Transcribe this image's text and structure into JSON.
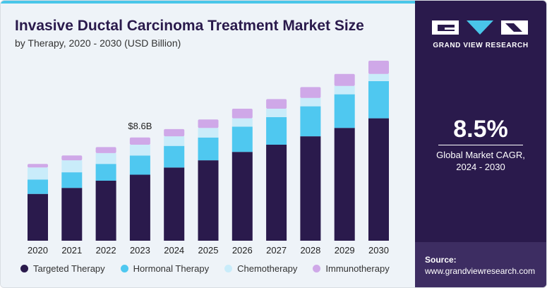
{
  "header": {
    "title": "Invasive Ductal Carcinoma Treatment Market Size",
    "subtitle": "by Therapy, 2020 - 2030 (USD Billion)"
  },
  "colors": {
    "targeted": "#2a1a4c",
    "hormonal": "#4fc8f0",
    "chemo": "#c9ecfa",
    "immuno": "#cfa8e8",
    "panel": "#2a1a4c",
    "accent": "#49c6e9"
  },
  "chart_data": {
    "type": "bar",
    "stacked": true,
    "categories": [
      "2020",
      "2021",
      "2022",
      "2023",
      "2024",
      "2025",
      "2026",
      "2027",
      "2028",
      "2029",
      "2030"
    ],
    "series": [
      {
        "name": "Targeted Therapy",
        "values": [
          3.9,
          4.4,
          5.0,
          5.5,
          6.1,
          6.7,
          7.4,
          8.0,
          8.7,
          9.4,
          10.2
        ]
      },
      {
        "name": "Hormonal Therapy",
        "values": [
          1.2,
          1.3,
          1.4,
          1.6,
          1.8,
          1.9,
          2.1,
          2.3,
          2.5,
          2.8,
          3.1
        ]
      },
      {
        "name": "Chemotherapy",
        "values": [
          1.0,
          1.0,
          0.9,
          0.9,
          0.8,
          0.8,
          0.7,
          0.7,
          0.7,
          0.7,
          0.6
        ]
      },
      {
        "name": "Immunotherapy",
        "values": [
          0.3,
          0.4,
          0.5,
          0.6,
          0.6,
          0.7,
          0.8,
          0.8,
          0.9,
          1.0,
          1.1
        ]
      }
    ],
    "annotations": [
      {
        "category": "2023",
        "text": "$8.6B"
      }
    ],
    "ylim": [
      0,
      16
    ],
    "grid": false,
    "legend": "bottom"
  },
  "legend": [
    {
      "label": "Targeted Therapy",
      "color": "#2a1a4c"
    },
    {
      "label": "Hormonal Therapy",
      "color": "#4fc8f0"
    },
    {
      "label": "Chemotherapy",
      "color": "#c9ecfa"
    },
    {
      "label": "Immunotherapy",
      "color": "#cfa8e8"
    }
  ],
  "sidebar": {
    "logo_icon": "grand-view-research-logo",
    "brand": "GRAND VIEW RESEARCH",
    "cagr_value": "8.5%",
    "cagr_line1": "Global Market CAGR,",
    "cagr_line2": "2024 - 2030",
    "source_title": "Source:",
    "source_url": "www.grandviewresearch.com"
  }
}
